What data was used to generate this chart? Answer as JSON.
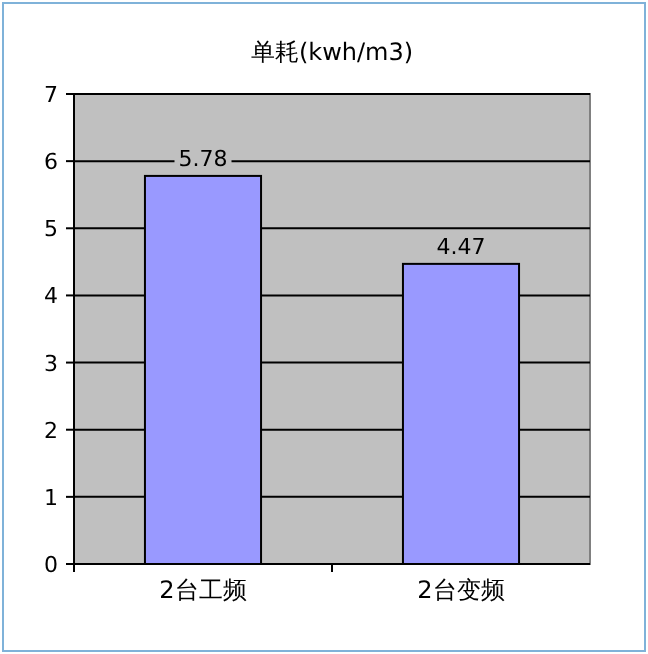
{
  "chart_data": {
    "type": "bar",
    "title": "单耗(kwh/m3)",
    "categories": [
      "2台工频",
      "2台变频"
    ],
    "values": [
      5.78,
      4.47
    ],
    "color": "#9999ff",
    "ylim": [
      0,
      7
    ],
    "yticks": [
      0,
      1,
      2,
      3,
      4,
      5,
      6,
      7
    ],
    "grid": "y",
    "data_labels": true
  }
}
